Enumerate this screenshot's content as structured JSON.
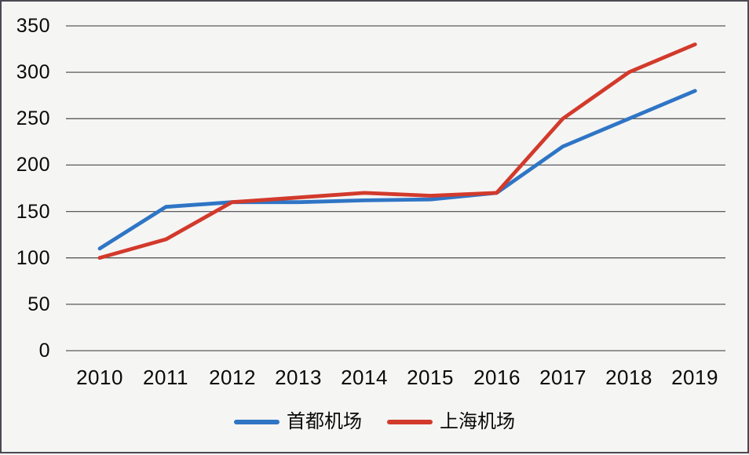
{
  "chart_data": {
    "type": "line",
    "title": "",
    "xlabel": "",
    "ylabel": "",
    "categories": [
      "2010",
      "2011",
      "2012",
      "2013",
      "2014",
      "2015",
      "2016",
      "2017",
      "2018",
      "2019"
    ],
    "series": [
      {
        "name": "首都机场",
        "color": "#2f75c5",
        "values": [
          110,
          155,
          160,
          160,
          162,
          163,
          170,
          220,
          250,
          280
        ]
      },
      {
        "name": "上海机场",
        "color": "#d23a2b",
        "values": [
          100,
          120,
          160,
          165,
          170,
          167,
          170,
          250,
          300,
          330
        ]
      }
    ],
    "ylim": [
      0,
      350
    ],
    "y_ticks": [
      0,
      50,
      100,
      150,
      200,
      250,
      300,
      350
    ],
    "grid": "horizontal",
    "gridline_color": "#5a5a5a",
    "legend_position": "bottom"
  },
  "colors": {
    "background": "#f5f5f4",
    "frame_border": "#4a4a52",
    "text": "#0a0a0a"
  }
}
